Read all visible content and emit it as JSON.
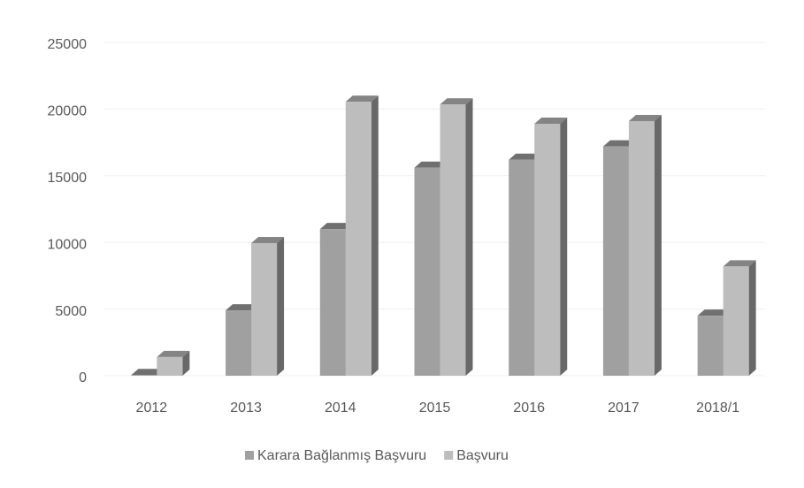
{
  "chart_data": {
    "type": "bar3d",
    "categories": [
      "2012",
      "2013",
      "2014",
      "2015",
      "2016",
      "2017",
      "2018/1"
    ],
    "series": [
      {
        "name": "Karara Bağlanmış Başvuru",
        "color": "#a0a0a0",
        "values": [
          50,
          4900,
          11000,
          15600,
          16200,
          17200,
          4500
        ]
      },
      {
        "name": "Başvuru",
        "color": "#bdbdbd",
        "values": [
          1400,
          9950,
          20550,
          20350,
          18900,
          19100,
          8200
        ]
      }
    ],
    "ylim": [
      0,
      25000
    ],
    "yticks": [
      0,
      5000,
      10000,
      15000,
      20000,
      25000
    ],
    "grid": true,
    "legend": "bottom"
  }
}
